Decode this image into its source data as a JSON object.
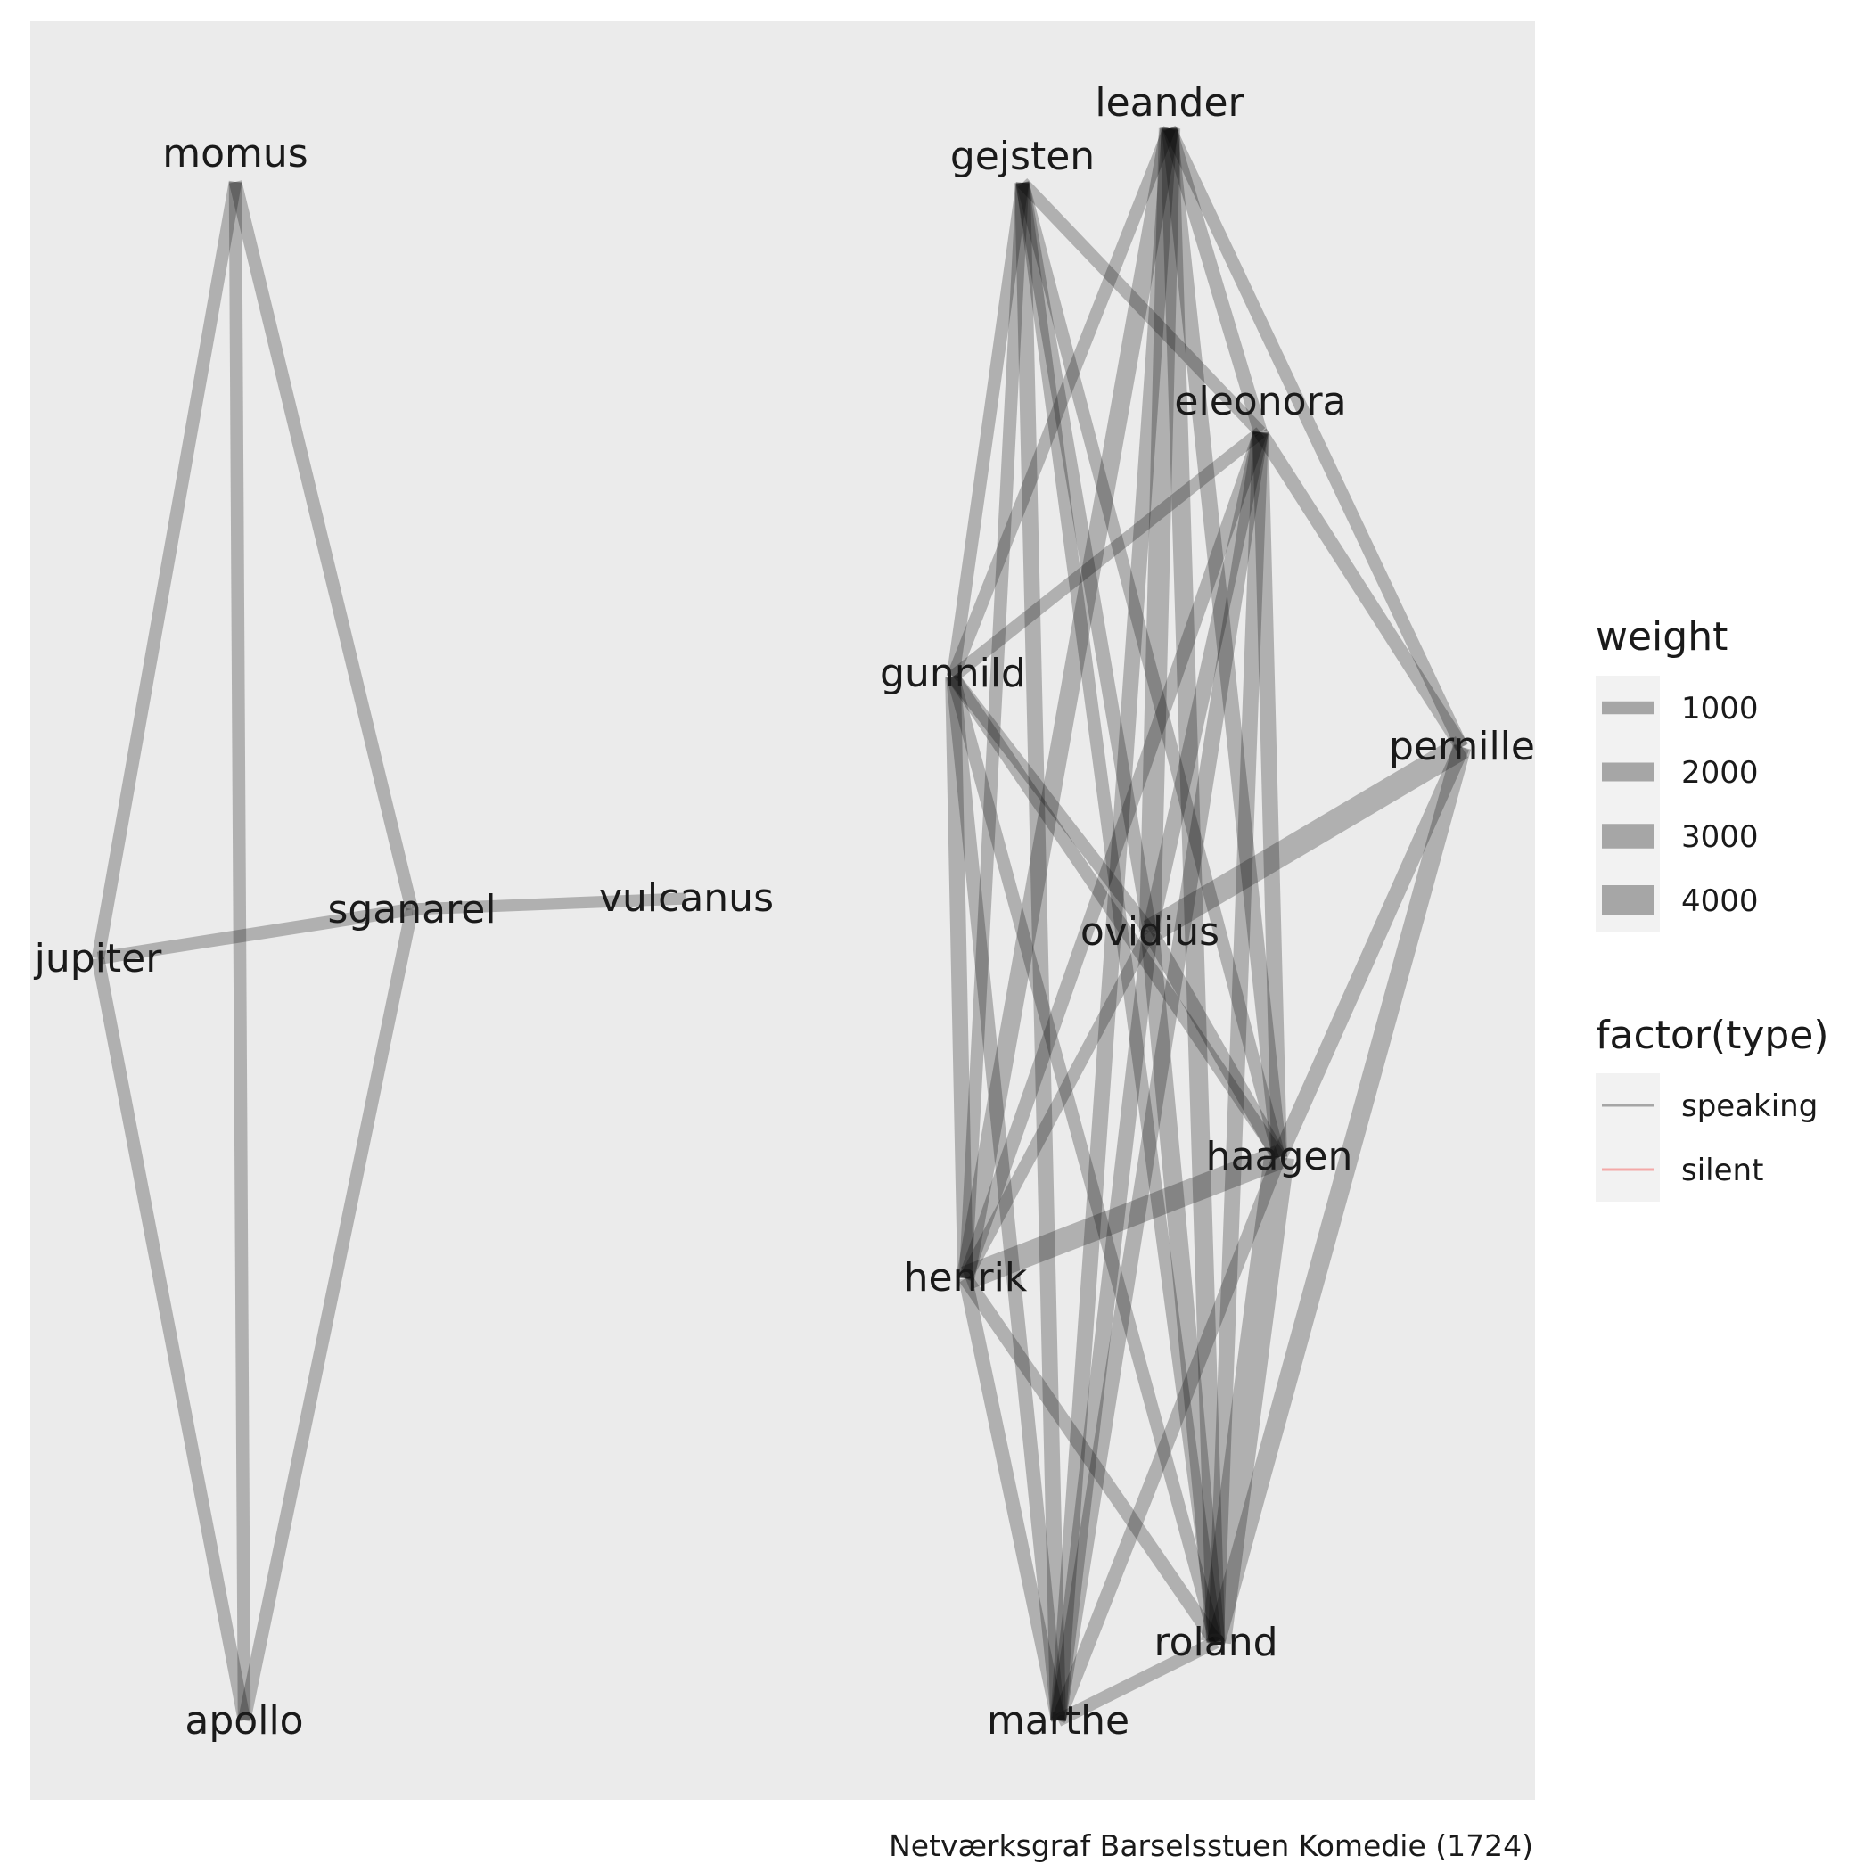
{
  "caption": "Netværksgraf Barselsstuen Komedie (1724)",
  "colors": {
    "panel": "#ebebeb",
    "edge": "#000000",
    "speaking": "#a6a6a6",
    "silent": "#f4a9a8",
    "legend_key_bg": "#f2f2f2"
  },
  "nodes": [
    {
      "id": "momus",
      "label": "momus"
    },
    {
      "id": "jupiter",
      "label": "jupiter"
    },
    {
      "id": "sganarel",
      "label": "sganarel"
    },
    {
      "id": "vulcanus",
      "label": "vulcanus"
    },
    {
      "id": "apollo",
      "label": "apollo"
    },
    {
      "id": "leander",
      "label": "leander"
    },
    {
      "id": "gejsten",
      "label": "gejsten"
    },
    {
      "id": "eleonora",
      "label": "eleonora"
    },
    {
      "id": "gunnild",
      "label": "gunnild"
    },
    {
      "id": "pernille",
      "label": "pernille"
    },
    {
      "id": "ovidius",
      "label": "ovidius"
    },
    {
      "id": "haagen",
      "label": "haagen"
    },
    {
      "id": "henrik",
      "label": "henrik"
    },
    {
      "id": "roland",
      "label": "roland"
    },
    {
      "id": "marthe",
      "label": "marthe"
    }
  ],
  "edges": [
    {
      "source": "momus",
      "target": "jupiter",
      "weight": 1000,
      "type": "speaking"
    },
    {
      "source": "momus",
      "target": "sganarel",
      "weight": 1000,
      "type": "speaking"
    },
    {
      "source": "momus",
      "target": "apollo",
      "weight": 1000,
      "type": "speaking"
    },
    {
      "source": "jupiter",
      "target": "sganarel",
      "weight": 1000,
      "type": "speaking"
    },
    {
      "source": "jupiter",
      "target": "apollo",
      "weight": 1000,
      "type": "speaking"
    },
    {
      "source": "sganarel",
      "target": "apollo",
      "weight": 1000,
      "type": "speaking"
    },
    {
      "source": "sganarel",
      "target": "vulcanus",
      "weight": 800,
      "type": "speaking"
    },
    {
      "source": "leander",
      "target": "eleonora",
      "weight": 1200,
      "type": "speaking"
    },
    {
      "source": "leander",
      "target": "pernille",
      "weight": 1000,
      "type": "speaking"
    },
    {
      "source": "leander",
      "target": "gunnild",
      "weight": 1000,
      "type": "speaking"
    },
    {
      "source": "leander",
      "target": "ovidius",
      "weight": 2500,
      "type": "speaking"
    },
    {
      "source": "leander",
      "target": "haagen",
      "weight": 1500,
      "type": "speaking"
    },
    {
      "source": "leander",
      "target": "henrik",
      "weight": 2000,
      "type": "speaking"
    },
    {
      "source": "leander",
      "target": "roland",
      "weight": 2000,
      "type": "speaking"
    },
    {
      "source": "leander",
      "target": "marthe",
      "weight": 1500,
      "type": "speaking"
    },
    {
      "source": "gejsten",
      "target": "eleonora",
      "weight": 1000,
      "type": "speaking"
    },
    {
      "source": "gejsten",
      "target": "gunnild",
      "weight": 1000,
      "type": "speaking"
    },
    {
      "source": "gejsten",
      "target": "ovidius",
      "weight": 1200,
      "type": "speaking"
    },
    {
      "source": "gejsten",
      "target": "haagen",
      "weight": 1000,
      "type": "speaking"
    },
    {
      "source": "gejsten",
      "target": "henrik",
      "weight": 1000,
      "type": "speaking"
    },
    {
      "source": "gejsten",
      "target": "roland",
      "weight": 1000,
      "type": "speaking"
    },
    {
      "source": "gejsten",
      "target": "marthe",
      "weight": 1500,
      "type": "speaking"
    },
    {
      "source": "eleonora",
      "target": "gunnild",
      "weight": 1000,
      "type": "speaking"
    },
    {
      "source": "eleonora",
      "target": "pernille",
      "weight": 1200,
      "type": "speaking"
    },
    {
      "source": "eleonora",
      "target": "ovidius",
      "weight": 1500,
      "type": "speaking"
    },
    {
      "source": "eleonora",
      "target": "haagen",
      "weight": 1500,
      "type": "speaking"
    },
    {
      "source": "eleonora",
      "target": "henrik",
      "weight": 1200,
      "type": "speaking"
    },
    {
      "source": "eleonora",
      "target": "roland",
      "weight": 1500,
      "type": "speaking"
    },
    {
      "source": "eleonora",
      "target": "marthe",
      "weight": 1500,
      "type": "speaking"
    },
    {
      "source": "gunnild",
      "target": "ovidius",
      "weight": 1000,
      "type": "speaking"
    },
    {
      "source": "gunnild",
      "target": "haagen",
      "weight": 1000,
      "type": "speaking"
    },
    {
      "source": "gunnild",
      "target": "henrik",
      "weight": 1500,
      "type": "speaking"
    },
    {
      "source": "gunnild",
      "target": "roland",
      "weight": 1000,
      "type": "speaking"
    },
    {
      "source": "gunnild",
      "target": "marthe",
      "weight": 1200,
      "type": "speaking"
    },
    {
      "source": "pernille",
      "target": "ovidius",
      "weight": 3000,
      "type": "speaking"
    },
    {
      "source": "pernille",
      "target": "haagen",
      "weight": 1500,
      "type": "speaking"
    },
    {
      "source": "pernille",
      "target": "roland",
      "weight": 2000,
      "type": "speaking"
    },
    {
      "source": "ovidius",
      "target": "haagen",
      "weight": 1500,
      "type": "speaking"
    },
    {
      "source": "ovidius",
      "target": "henrik",
      "weight": 1000,
      "type": "speaking"
    },
    {
      "source": "ovidius",
      "target": "roland",
      "weight": 2000,
      "type": "speaking"
    },
    {
      "source": "ovidius",
      "target": "marthe",
      "weight": 1500,
      "type": "speaking"
    },
    {
      "source": "haagen",
      "target": "henrik",
      "weight": 3000,
      "type": "speaking"
    },
    {
      "source": "haagen",
      "target": "roland",
      "weight": 4000,
      "type": "speaking"
    },
    {
      "source": "haagen",
      "target": "marthe",
      "weight": 1200,
      "type": "speaking"
    },
    {
      "source": "henrik",
      "target": "roland",
      "weight": 1200,
      "type": "speaking"
    },
    {
      "source": "henrik",
      "target": "marthe",
      "weight": 1200,
      "type": "speaking"
    },
    {
      "source": "roland",
      "target": "marthe",
      "weight": 1000,
      "type": "speaking"
    }
  ],
  "legend": {
    "weight_title": "weight",
    "weight_items": [
      {
        "label": "1000",
        "weight": 1000
      },
      {
        "label": "2000",
        "weight": 2000
      },
      {
        "label": "3000",
        "weight": 3000
      },
      {
        "label": "4000",
        "weight": 4000
      }
    ],
    "type_title": "factor(type)",
    "type_items": [
      {
        "label": "speaking",
        "type": "speaking"
      },
      {
        "label": "silent",
        "type": "silent"
      }
    ]
  }
}
